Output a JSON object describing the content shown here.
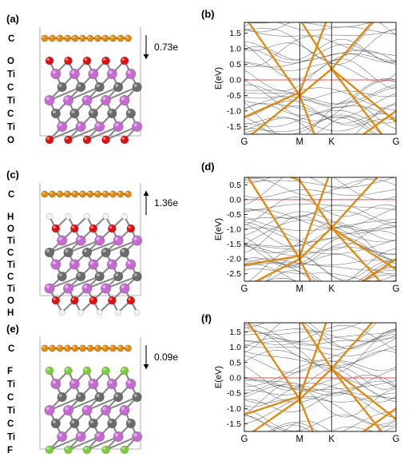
{
  "colors": {
    "carbon_graphene": "#e08a12",
    "carbon_mxene": "#6b6b6b",
    "titanium": "#c46ad0",
    "oxygen": "#dd1111",
    "hydrogen": "#f2f2f2",
    "fluorine": "#7ccc3c",
    "fermi_line": "#e05555",
    "graphene_band": "#e08a12",
    "band": "#555555"
  },
  "structures": [
    {
      "label": "(a)",
      "top_layer": "C",
      "layers": [
        "O",
        "Ti",
        "C",
        "Ti",
        "C",
        "Ti",
        "O"
      ],
      "surface_atom": "oxygen",
      "terminal_h": false,
      "charge_transfer": "0.73e",
      "arrow": "down"
    },
    {
      "label": "(c)",
      "top_layer": "C",
      "layers": [
        "H",
        "O",
        "Ti",
        "C",
        "Ti",
        "C",
        "Ti",
        "O",
        "H"
      ],
      "surface_atom": "oxygen",
      "terminal_h": true,
      "charge_transfer": "1.36e",
      "arrow": "up"
    },
    {
      "label": "(e)",
      "top_layer": "C",
      "layers": [
        "F",
        "Ti",
        "C",
        "Ti",
        "C",
        "Ti",
        "F"
      ],
      "surface_atom": "fluorine",
      "terminal_h": false,
      "charge_transfer": "0.09e",
      "arrow": "down"
    }
  ],
  "chart_data": [
    {
      "label": "(b)",
      "type": "line",
      "ylabel": "E(eV)",
      "ylim": [
        -1.75,
        1.85
      ],
      "yticks": [
        "1.5",
        "1.0",
        "0.5",
        "0.0",
        "-0.5",
        "-1.0",
        "-1.5"
      ],
      "ytick_values": [
        1.5,
        1.0,
        0.5,
        0.0,
        -0.5,
        -1.0,
        -1.5
      ],
      "kpoints": [
        "G",
        "M",
        "K",
        "G"
      ],
      "fermi_level": 0.0,
      "dirac_energy": 0.35,
      "m_energy": -0.5
    },
    {
      "label": "(d)",
      "type": "line",
      "ylabel": "E(eV)",
      "ylim": [
        -2.75,
        0.75
      ],
      "yticks": [
        "0.5",
        "0.0",
        "-0.5",
        "-1.0",
        "-1.5",
        "-2.0",
        "-2.5"
      ],
      "ytick_values": [
        0.5,
        0.0,
        -0.5,
        -1.0,
        -1.5,
        -2.0,
        -2.5
      ],
      "kpoints": [
        "G",
        "M",
        "K",
        "G"
      ],
      "fermi_level": 0.0,
      "dirac_energy": -0.95,
      "m_energy": -2.0
    },
    {
      "label": "(f)",
      "type": "line",
      "ylabel": "E(eV)",
      "ylim": [
        -1.75,
        1.8
      ],
      "yticks": [
        "1.5",
        "1.0",
        "0.5",
        "0.0",
        "-0.5",
        "-1.0",
        "-1.5"
      ],
      "ytick_values": [
        1.5,
        1.0,
        0.5,
        0.0,
        -0.5,
        -1.0,
        -1.5
      ],
      "kpoints": [
        "G",
        "M",
        "K",
        "G"
      ],
      "fermi_level": 0.0,
      "dirac_energy": 0.3,
      "m_energy": -0.7
    }
  ]
}
